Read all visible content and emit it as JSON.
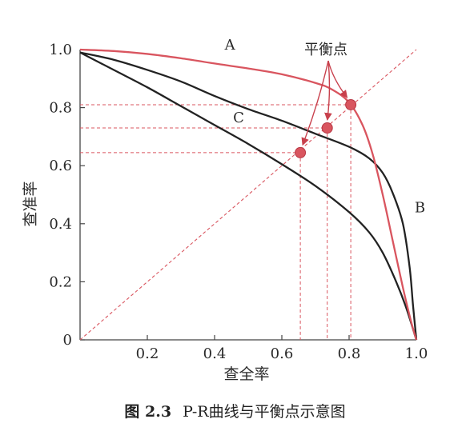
{
  "chart_data": {
    "type": "line",
    "xlabel": "查全率",
    "ylabel": "查准率",
    "xlim": [
      0,
      1.0
    ],
    "ylim": [
      0,
      1.0
    ],
    "x_ticks": [
      "0.2",
      "0.4",
      "0.6",
      "0.8",
      "1.0"
    ],
    "y_ticks": [
      "0",
      "0.2",
      "0.4",
      "0.6",
      "0.8",
      "1.0"
    ],
    "grid": false,
    "series": [
      {
        "name": "A",
        "color": "#d9555f",
        "points": [
          [
            0,
            1.0
          ],
          [
            0.1,
            0.995
          ],
          [
            0.2,
            0.985
          ],
          [
            0.3,
            0.97
          ],
          [
            0.4,
            0.952
          ],
          [
            0.5,
            0.935
          ],
          [
            0.6,
            0.915
          ],
          [
            0.7,
            0.885
          ],
          [
            0.75,
            0.862
          ],
          [
            0.8,
            0.818
          ],
          [
            0.84,
            0.74
          ],
          [
            0.87,
            0.64
          ],
          [
            0.9,
            0.5
          ],
          [
            0.93,
            0.34
          ],
          [
            0.96,
            0.18
          ],
          [
            0.985,
            0.06
          ],
          [
            1.0,
            0
          ]
        ]
      },
      {
        "name": "B",
        "color": "#222222",
        "points": [
          [
            0,
            0.99
          ],
          [
            0.1,
            0.965
          ],
          [
            0.2,
            0.93
          ],
          [
            0.3,
            0.89
          ],
          [
            0.4,
            0.84
          ],
          [
            0.5,
            0.795
          ],
          [
            0.6,
            0.755
          ],
          [
            0.7,
            0.71
          ],
          [
            0.8,
            0.665
          ],
          [
            0.86,
            0.625
          ],
          [
            0.9,
            0.575
          ],
          [
            0.93,
            0.505
          ],
          [
            0.96,
            0.4
          ],
          [
            0.98,
            0.25
          ],
          [
            0.99,
            0.12
          ],
          [
            1.0,
            0
          ]
        ]
      },
      {
        "name": "C",
        "color": "#222222",
        "points": [
          [
            0,
            0.99
          ],
          [
            0.1,
            0.93
          ],
          [
            0.2,
            0.87
          ],
          [
            0.3,
            0.805
          ],
          [
            0.4,
            0.74
          ],
          [
            0.5,
            0.675
          ],
          [
            0.6,
            0.605
          ],
          [
            0.7,
            0.53
          ],
          [
            0.8,
            0.44
          ],
          [
            0.86,
            0.37
          ],
          [
            0.9,
            0.3
          ],
          [
            0.94,
            0.2
          ],
          [
            0.97,
            0.11
          ],
          [
            1.0,
            0
          ]
        ]
      }
    ],
    "diagonal": {
      "color": "#d9555f",
      "style": "dashed"
    },
    "break_even_points": [
      {
        "x": 0.655,
        "y": 0.645
      },
      {
        "x": 0.735,
        "y": 0.73
      },
      {
        "x": 0.805,
        "y": 0.81
      }
    ],
    "annotation": "平衡点",
    "accent_color": "#d9555f"
  },
  "caption": {
    "fig_num": "图 2.3",
    "text": "P-R曲线与平衡点示意图"
  }
}
